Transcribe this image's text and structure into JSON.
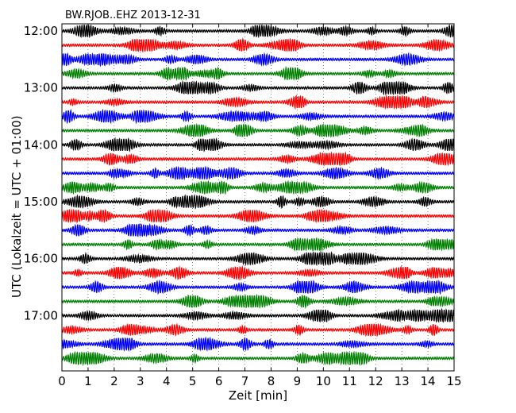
{
  "chart_data": {
    "type": "line",
    "title": "BW.RJOB..EHZ 2013-12-31",
    "xlabel": "Zeit  [min]",
    "ylabel": "UTC (Lokalzeit = UTC + 01:00)",
    "xlim": [
      0,
      15
    ],
    "x_ticks": [
      "0",
      "1",
      "2",
      "3",
      "4",
      "5",
      "6",
      "7",
      "8",
      "9",
      "10",
      "11",
      "12",
      "13",
      "14",
      "15"
    ],
    "y_tick_labels": [
      "12:00",
      "13:00",
      "14:00",
      "15:00",
      "16:00",
      "17:00"
    ],
    "trace_interval_min": 15,
    "trace_starts_utc": [
      "12:00",
      "12:15",
      "12:30",
      "12:45",
      "13:00",
      "13:15",
      "13:30",
      "13:45",
      "14:00",
      "14:15",
      "14:30",
      "14:45",
      "15:00",
      "15:15",
      "15:30",
      "15:45",
      "16:00",
      "16:15",
      "16:30",
      "16:45",
      "17:00",
      "17:15",
      "17:30",
      "17:45"
    ],
    "color_cycle": [
      "#000000",
      "#ff0000",
      "#0000ff",
      "#008000"
    ],
    "grid": "vertical dotted at each minute"
  }
}
